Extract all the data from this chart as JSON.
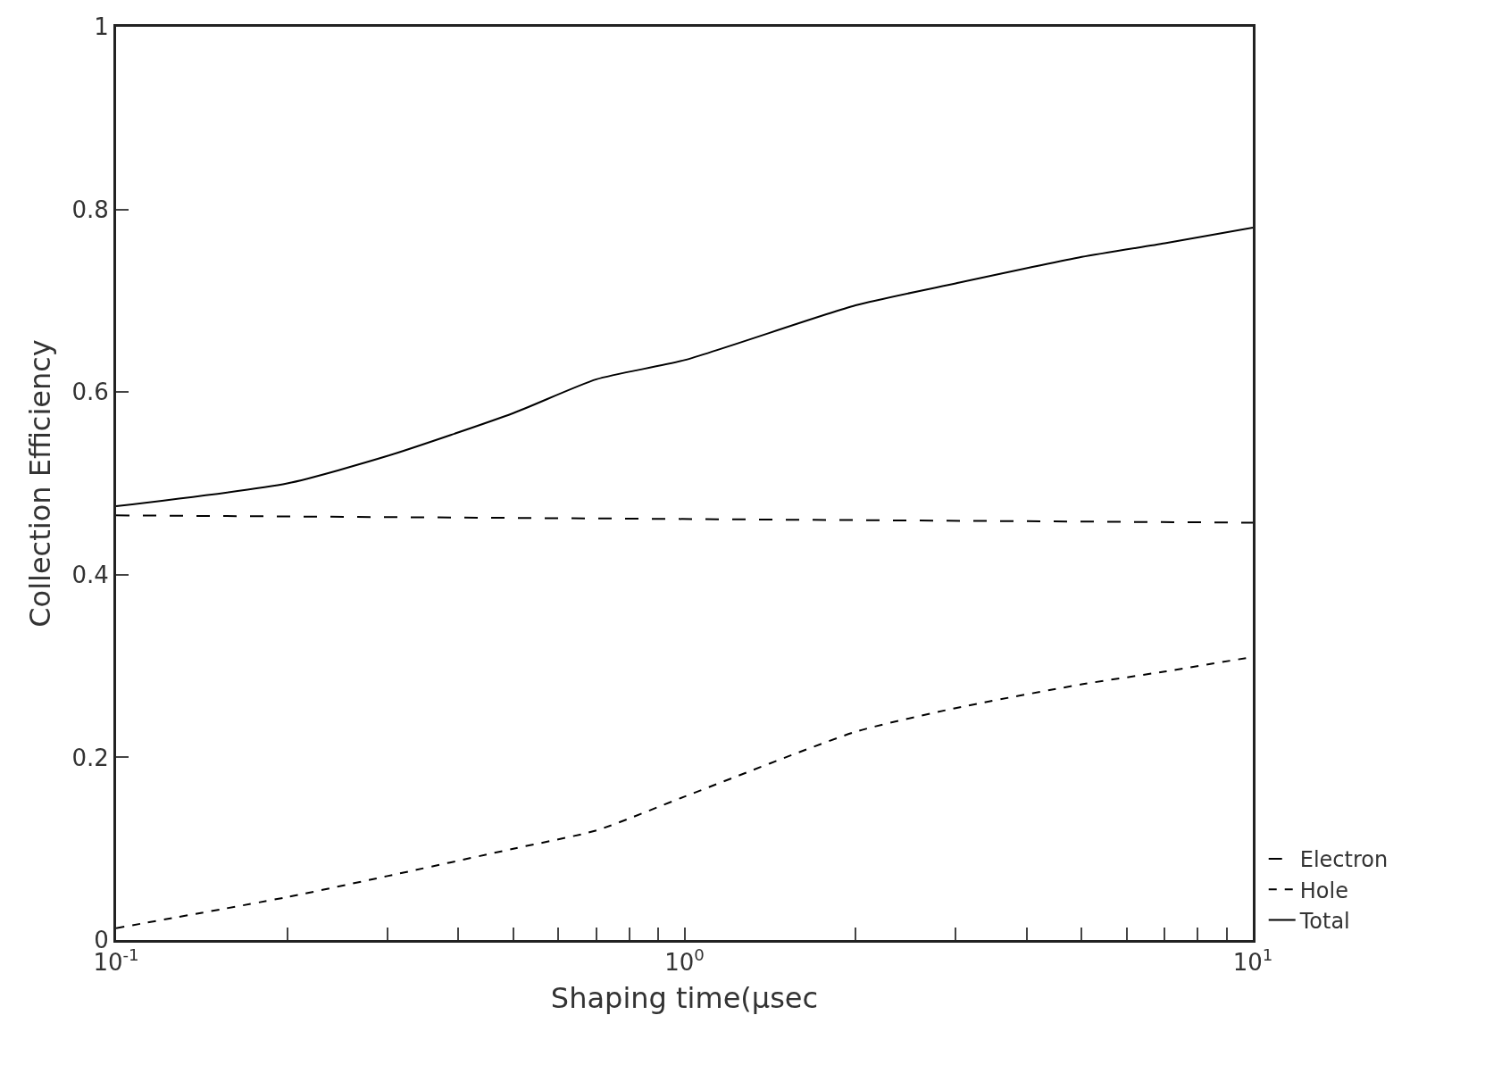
{
  "chart_data": {
    "type": "line",
    "xlabel": "Shaping time(μsec",
    "ylabel": "Collection Efficiency",
    "log": "x",
    "x": [
      0.1,
      0.2,
      0.3,
      0.5,
      0.7,
      1,
      2,
      3,
      5,
      7,
      10
    ],
    "series": [
      {
        "name": "Electron",
        "color": "#000000",
        "line_style": "dashed",
        "x": [
          0.1,
          10
        ],
        "values": [
          0.465,
          0.457
        ]
      },
      {
        "name": "Hole",
        "color": "#000000",
        "line_style": "dotted",
        "values": [
          0.013,
          0.047,
          0.07,
          0.1,
          0.12,
          0.157,
          0.228,
          0.254,
          0.28,
          0.294,
          0.31
        ]
      },
      {
        "name": "Total",
        "color": "#000000",
        "line_style": "solid",
        "values": [
          0.475,
          0.5,
          0.53,
          0.577,
          0.614,
          0.635,
          0.695,
          0.719,
          0.748,
          0.763,
          0.78
        ]
      }
    ],
    "xlim": [
      0.1,
      10
    ],
    "xticks": [
      {
        "value": 0.1,
        "label": "10$^{-1}$"
      },
      {
        "value": 0.2,
        "label": null
      },
      {
        "value": 0.3,
        "label": null
      },
      {
        "value": 0.4,
        "label": null
      },
      {
        "value": 0.5,
        "label": null
      },
      {
        "value": 0.6,
        "label": null
      },
      {
        "value": 0.7,
        "label": null
      },
      {
        "value": 0.8,
        "label": null
      },
      {
        "value": 0.9,
        "label": null
      },
      {
        "value": 1,
        "label": "10$^{0}$"
      },
      {
        "value": 2,
        "label": null
      },
      {
        "value": 3,
        "label": null
      },
      {
        "value": 4,
        "label": null
      },
      {
        "value": 5,
        "label": null
      },
      {
        "value": 6,
        "label": null
      },
      {
        "value": 7,
        "label": null
      },
      {
        "value": 8,
        "label": null
      },
      {
        "value": 9,
        "label": null
      },
      {
        "value": 10,
        "label": "10$^{1}$"
      }
    ],
    "ylim": [
      0,
      1
    ],
    "yticks": [
      0,
      0.2,
      0.4,
      0.6,
      0.8,
      1
    ],
    "legend": "bottom right",
    "marker": "none"
  }
}
